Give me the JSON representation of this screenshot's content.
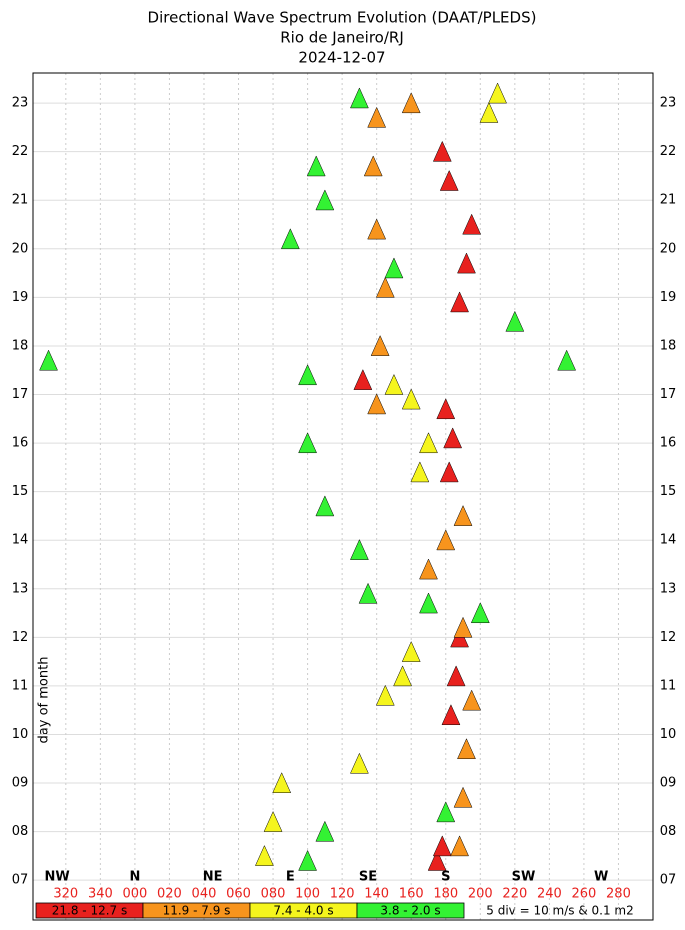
{
  "chart_data": {
    "type": "direction-spectrum",
    "title": [
      "Directional Wave Spectrum Evolution (DAAT/PLEDS)",
      "Rio de Janeiro/RJ",
      "2024-12-07"
    ],
    "ylabel": "day of month",
    "scale_note": "5 div = 10 m/s & 0.1 m2",
    "xlim": [
      -59,
      300
    ],
    "ylim": [
      6.18,
      23.62
    ],
    "xticks": [
      {
        "value": -40,
        "label": "320"
      },
      {
        "value": -20,
        "label": "340"
      },
      {
        "value": 0,
        "label": "000"
      },
      {
        "value": 20,
        "label": "020"
      },
      {
        "value": 40,
        "label": "040"
      },
      {
        "value": 60,
        "label": "060"
      },
      {
        "value": 80,
        "label": "080"
      },
      100,
      120,
      140,
      160,
      180,
      200,
      220,
      240,
      260,
      280
    ],
    "compass": [
      {
        "value": -45,
        "label": "NW"
      },
      {
        "value": 0,
        "label": "N"
      },
      {
        "value": 45,
        "label": "NE"
      },
      {
        "value": 90,
        "label": "E"
      },
      {
        "value": 135,
        "label": "SE"
      },
      {
        "value": 180,
        "label": "S"
      },
      {
        "value": 225,
        "label": "SW"
      },
      {
        "value": 270,
        "label": "W"
      }
    ],
    "yticks": [
      {
        "value": 7,
        "label": "07"
      },
      {
        "value": 8,
        "label": "08"
      },
      {
        "value": 9,
        "label": "09"
      },
      10,
      11,
      12,
      13,
      14,
      15,
      16,
      17,
      18,
      19,
      20,
      21,
      22,
      23
    ],
    "grid": true,
    "series": [
      {
        "name": "21.8 - 12.7 s",
        "color": "#e8211e",
        "x": [
          175,
          178,
          183,
          186,
          188,
          182,
          184,
          180,
          132,
          188,
          192,
          195,
          182,
          178
        ],
        "values": [
          7.2,
          7.5,
          10.2,
          11.0,
          11.8,
          15.2,
          15.9,
          16.5,
          17.1,
          18.7,
          19.5,
          20.3,
          21.2,
          21.8
        ]
      },
      {
        "name": "11.9 - 7.9 s",
        "color": "#f7941d",
        "x": [
          188,
          190,
          192,
          195,
          190,
          170,
          180,
          190,
          140,
          142,
          145,
          140,
          138,
          140,
          160
        ],
        "values": [
          7.5,
          8.5,
          9.5,
          10.5,
          12.0,
          13.2,
          13.8,
          14.3,
          16.6,
          17.8,
          19.0,
          20.2,
          21.5,
          22.5,
          22.8
        ]
      },
      {
        "name": "7.4 - 4.0 s",
        "color": "#f5f51d",
        "x": [
          75,
          80,
          85,
          130,
          145,
          155,
          160,
          165,
          170,
          160,
          150,
          205,
          210
        ],
        "values": [
          7.3,
          8.0,
          8.8,
          9.2,
          10.6,
          11.0,
          11.5,
          15.2,
          15.8,
          16.7,
          17.0,
          22.6,
          23.0
        ]
      },
      {
        "name": "3.8 - 2.0 s",
        "color": "#33f233",
        "x": [
          100,
          110,
          180,
          135,
          170,
          200,
          130,
          110,
          100,
          -50,
          100,
          250,
          220,
          150,
          90,
          110,
          105,
          130
        ],
        "values": [
          7.2,
          7.8,
          8.2,
          12.7,
          12.5,
          12.3,
          13.6,
          14.5,
          15.8,
          17.5,
          17.2,
          17.5,
          18.3,
          19.4,
          20.0,
          20.8,
          21.5,
          22.9
        ]
      }
    ]
  }
}
